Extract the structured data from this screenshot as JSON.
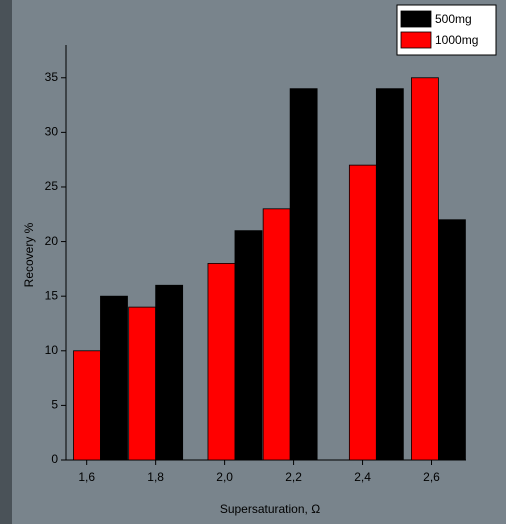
{
  "chart_data": {
    "type": "bar",
    "x_label": "Supersaturation, Ω",
    "y_label": "Recovery %",
    "x": [
      1.64,
      1.8,
      2.03,
      2.19,
      2.44,
      2.62
    ],
    "series": [
      {
        "name": "1000mg",
        "color": "#ff0000",
        "values": [
          10,
          14,
          18,
          23,
          27,
          35
        ]
      },
      {
        "name": "500mg",
        "color": "#000000",
        "values": [
          15,
          16,
          21,
          34,
          34,
          22
        ]
      }
    ],
    "xlim": [
      1.54,
      2.7
    ],
    "xticks": [
      {
        "value": 1.6,
        "label": "1,6"
      },
      {
        "value": 1.8,
        "label": "1,8"
      },
      {
        "value": 2.0,
        "label": "2,0"
      },
      {
        "value": 2.2,
        "label": "2,2"
      },
      {
        "value": 2.4,
        "label": "2,4"
      },
      {
        "value": 2.6,
        "label": "2,6"
      }
    ],
    "ylim": [
      0,
      38
    ],
    "yticks": [
      0,
      5,
      10,
      15,
      20,
      25,
      30,
      35
    ],
    "legend": "top-right"
  }
}
